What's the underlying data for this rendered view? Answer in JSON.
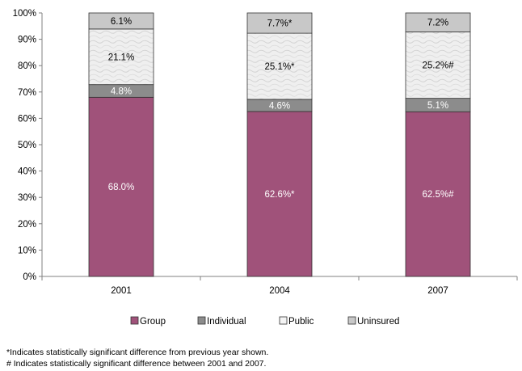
{
  "chart_data": {
    "type": "bar",
    "stacked": true,
    "categories": [
      "2001",
      "2004",
      "2007"
    ],
    "series": [
      {
        "name": "Group",
        "values": [
          68.0,
          62.6,
          62.5
        ],
        "labels": [
          "68.0%",
          "62.6%*",
          "62.5%#"
        ],
        "color": "#a0527a"
      },
      {
        "name": "Individual",
        "values": [
          4.8,
          4.6,
          5.1
        ],
        "labels": [
          "4.8%",
          "4.6%",
          "5.1%"
        ],
        "color": "#8c8c8c"
      },
      {
        "name": "Public",
        "values": [
          21.1,
          25.1,
          25.2
        ],
        "labels": [
          "21.1%",
          "25.1%*",
          "25.2%#"
        ],
        "color": "#ececec"
      },
      {
        "name": "Uninsured",
        "values": [
          6.1,
          7.7,
          7.2
        ],
        "labels": [
          "6.1%",
          "7.7%*",
          "7.2%"
        ],
        "color": "#c8c8c8"
      }
    ],
    "yticks": [
      "0%",
      "10%",
      "20%",
      "30%",
      "40%",
      "50%",
      "60%",
      "70%",
      "80%",
      "90%",
      "100%"
    ],
    "ylim": [
      0,
      100
    ],
    "grid": false,
    "legend_position": "bottom"
  },
  "footnotes": [
    "*Indicates statistically significant difference from previous year shown.",
    "# Indicates statistically significant difference between 2001 and 2007."
  ]
}
